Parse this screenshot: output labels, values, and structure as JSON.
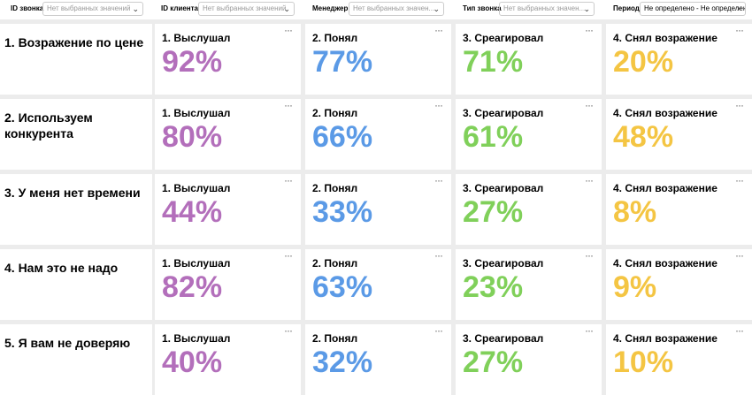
{
  "filters": [
    {
      "label": "ID звонка",
      "value": "Нет выбранных значений"
    },
    {
      "label": "ID клиента",
      "value": "Нет выбранных значений"
    },
    {
      "label": "Менеджер",
      "value": "Нет выбранных значен..."
    },
    {
      "label": "Тип звонка",
      "value": "Нет выбранных значен..."
    },
    {
      "label": "Период",
      "value": "Не определено - Не определен"
    }
  ],
  "rows": [
    {
      "objection": "1. Возражение по цене",
      "cards": [
        {
          "title": "1. Выслушал",
          "value": "92%"
        },
        {
          "title": "2. Понял",
          "value": "77%"
        },
        {
          "title": "3. Среагировал",
          "value": "71%"
        },
        {
          "title": "4. Снял возражение",
          "value": "20%"
        }
      ]
    },
    {
      "objection": "2. Используем конкурента",
      "cards": [
        {
          "title": "1. Выслушал",
          "value": "80%"
        },
        {
          "title": "2. Понял",
          "value": "66%"
        },
        {
          "title": "3. Среагировал",
          "value": "61%"
        },
        {
          "title": "4. Снял возражение",
          "value": "48%"
        }
      ]
    },
    {
      "objection": "3. У меня нет времени",
      "cards": [
        {
          "title": "1. Выслушал",
          "value": "44%"
        },
        {
          "title": "2. Понял",
          "value": "33%"
        },
        {
          "title": "3. Среагировал",
          "value": "27%"
        },
        {
          "title": "4. Снял возражение",
          "value": "8%"
        }
      ]
    },
    {
      "objection": "4. Нам это не надо",
      "cards": [
        {
          "title": "1. Выслушал",
          "value": "82%"
        },
        {
          "title": "2. Понял",
          "value": "63%"
        },
        {
          "title": "3. Среагировал",
          "value": "23%"
        },
        {
          "title": "4. Снял возражение",
          "value": "9%"
        }
      ]
    },
    {
      "objection": "5. Я вам не доверяю",
      "cards": [
        {
          "title": "1. Выслушал",
          "value": "40%"
        },
        {
          "title": "2. Понял",
          "value": "32%"
        },
        {
          "title": "3. Среагировал",
          "value": "27%"
        },
        {
          "title": "4. Снял возражение",
          "value": "10%"
        }
      ]
    }
  ]
}
